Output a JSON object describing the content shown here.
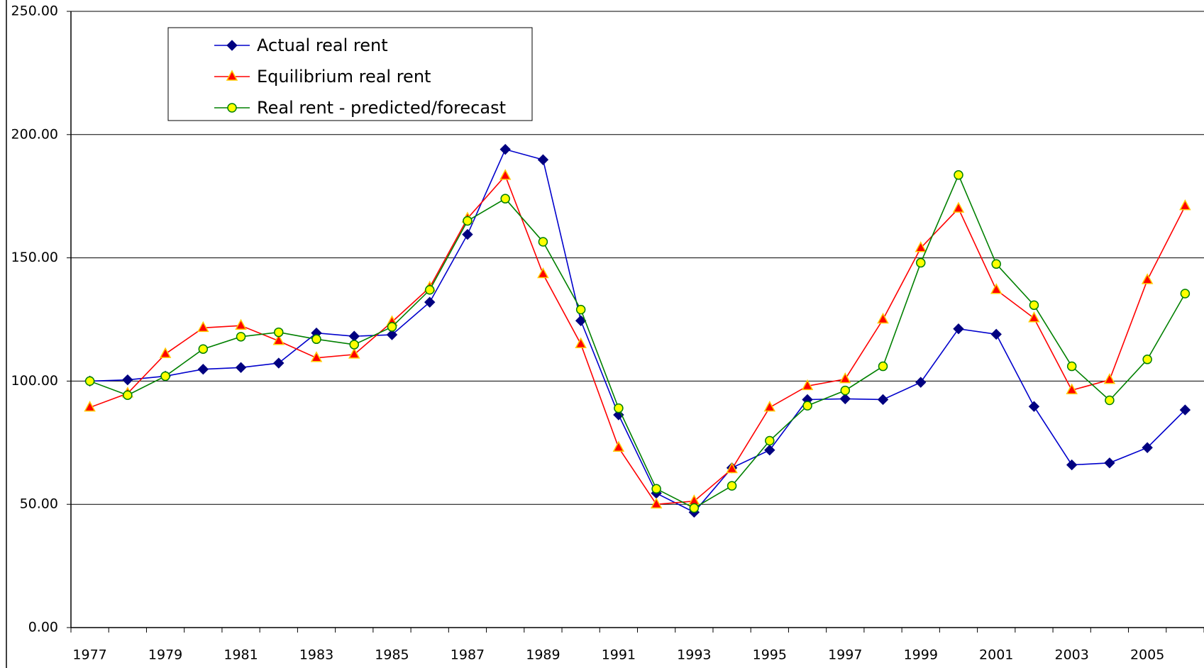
{
  "chart_data": {
    "type": "line",
    "categories": [
      "1977",
      null,
      "1979",
      null,
      "1981",
      null,
      "1983",
      null,
      "1985",
      null,
      "1987",
      null,
      "1989",
      null,
      "1991",
      null,
      "1993",
      null,
      "1995",
      null,
      "1997",
      null,
      "1999",
      null,
      "2001",
      null,
      "2003",
      null,
      "2005",
      null
    ],
    "series": [
      {
        "name": "Actual real rent",
        "color": "#0000cc",
        "marker": "diamond",
        "marker_color": "#000080",
        "values": [
          100,
          100.5,
          102,
          104.8,
          105.5,
          107.3,
          119.5,
          118.2,
          118.8,
          132,
          159.5,
          194,
          189.8,
          124.5,
          86.3,
          54.5,
          46.8,
          64.8,
          72,
          92.5,
          92.8,
          92.5,
          99.5,
          121.2,
          119,
          89.7,
          66,
          66.8,
          73,
          88.3
        ]
      },
      {
        "name": "Equilibrium real rent",
        "color": "#ff0000",
        "marker": "triangle",
        "marker_color": "#ff0000",
        "values": [
          89.3,
          95,
          111,
          121.6,
          122.5,
          116.3,
          109.4,
          110.8,
          124,
          138,
          166,
          183.3,
          143.4,
          115,
          73,
          50,
          51.3,
          64.3,
          89.3,
          98,
          100.8,
          125,
          154,
          170,
          137,
          125.5,
          96.3,
          100.5,
          141,
          171
        ]
      },
      {
        "name": "Real rent - predicted/forecast",
        "color": "#008000",
        "marker": "circle",
        "marker_color": "#ffff00",
        "values": [
          100,
          94.3,
          102,
          113,
          118,
          119.8,
          117,
          114.8,
          122,
          137,
          165,
          174,
          156.5,
          129,
          89,
          56.3,
          48.5,
          57.5,
          75.8,
          90,
          96.2,
          106,
          148,
          183.6,
          147.5,
          130.8,
          106,
          92.2,
          108.8,
          135.5
        ]
      }
    ],
    "ylim": [
      0,
      250
    ],
    "yticks": [
      {
        "value": 0,
        "label": "0.00"
      },
      {
        "value": 50,
        "label": "50.00"
      },
      {
        "value": 100,
        "label": "100.00"
      },
      {
        "value": 150,
        "label": "150.00"
      },
      {
        "value": 200,
        "label": "200.00"
      },
      {
        "value": 250,
        "label": "250.00"
      }
    ],
    "grid": true,
    "legend": "upper left"
  }
}
